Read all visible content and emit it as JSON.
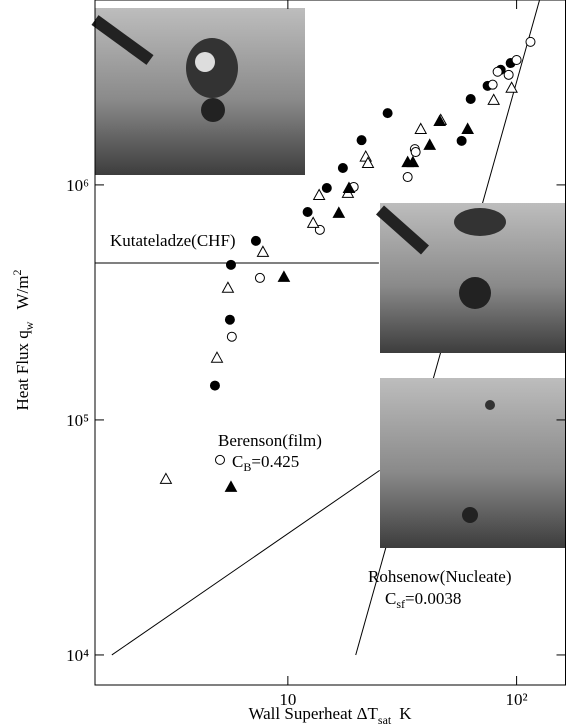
{
  "chart_data": {
    "type": "scatter",
    "x_label": {
      "main": "Wall Superheat ΔT",
      "sub": "sat",
      "unit": "K"
    },
    "y_label": {
      "main": "Heat Flux q",
      "sub": "w",
      "unit": "W/m",
      "sup": "2"
    },
    "log_x": true,
    "log_y": true,
    "xlim": [
      1.435,
      163.6
    ],
    "ylim": [
      7450,
      6120000
    ],
    "xticks": [
      10,
      {
        "value": 100,
        "label": "10²"
      }
    ],
    "yticks": [
      {
        "value": 10000,
        "label": "10⁴"
      },
      {
        "value": 100000,
        "label": "10⁵"
      },
      {
        "value": 1000000,
        "label": "10⁶"
      }
    ],
    "series": [
      {
        "marker": "circle",
        "filled": true,
        "color": "#000000",
        "x": [
          4.8,
          5.58,
          5.64,
          7.25,
          12.2,
          14.8,
          17.4,
          21.0,
          27.3,
          63.0,
          57.5,
          85.2,
          94.2,
          74.7
        ],
        "values": [
          140000,
          267000,
          457000,
          578000,
          767000,
          970000,
          1180000,
          1550000,
          2020000,
          2320000,
          1540000,
          3090000,
          3300000,
          2640000
        ]
      },
      {
        "marker": "circle",
        "filled": false,
        "color": "#000000",
        "x": [
          5.05,
          5.69,
          7.55,
          13.8,
          19.4,
          33.4,
          35.9,
          36.2,
          78.6,
          92.3,
          100,
          115,
          82.6
        ],
        "values": [
          67600,
          226000,
          402000,
          644000,
          980000,
          1080000,
          1420000,
          1380000,
          2670000,
          2940000,
          3400000,
          4060000,
          3030000
        ]
      },
      {
        "marker": "triangle",
        "filled": false,
        "color": "#000000",
        "x": [
          2.93,
          4.9,
          5.47,
          7.78,
          12.9,
          13.7,
          18.3,
          21.9,
          22.4,
          38.1,
          46.6,
          79.4,
          95.1
        ],
        "values": [
          56100,
          184000,
          365000,
          519000,
          689000,
          906000,
          925000,
          1320000,
          1240000,
          1730000,
          1890000,
          2300000,
          2590000
        ]
      },
      {
        "marker": "triangle",
        "filled": true,
        "color": "#000000",
        "x": [
          5.64,
          9.61,
          16.7,
          18.5,
          33.4,
          35.2,
          41.7,
          46.1,
          61.1
        ],
        "values": [
          51900,
          406000,
          760000,
          970000,
          1250000,
          1250000,
          1480000,
          1870000,
          1730000
        ]
      }
    ],
    "lines": [
      {
        "color": "#000000",
        "x": [
          1.435,
          25
        ],
        "values": [
          465000,
          465000
        ]
      },
      {
        "color": "#000000",
        "x": [
          1.7,
          25.2
        ],
        "values": [
          10000,
          61000
        ]
      },
      {
        "color": "#000000",
        "x": [
          19.8,
          126
        ],
        "values": [
          10000,
          6120000
        ]
      }
    ],
    "annotations": [
      {
        "main": "Kutateladze(CHF)"
      },
      {
        "main": "Berenson(film)"
      },
      {
        "main": "C",
        "sub": "B",
        "rest": "=0.425"
      },
      {
        "main": "Rohsenow(Nucleate)"
      },
      {
        "main": "C",
        "sub": "sf",
        "rest": "=0.0038"
      }
    ]
  }
}
